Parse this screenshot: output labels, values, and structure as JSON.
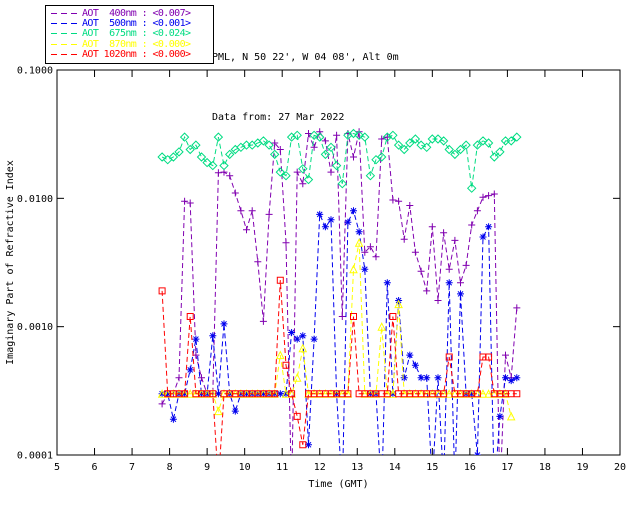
{
  "chart_data": {
    "type": "line",
    "title": "PML, N 50 22', W 04 08', Alt 0m",
    "subtitle": "Data from: 27 Mar 2022",
    "xlabel": "Time (GMT)",
    "ylabel": "Imaginary Part of Refractive Index",
    "xlim": [
      5,
      20
    ],
    "ylim": [
      0.0001,
      0.1
    ],
    "yscale": "log",
    "grid": false,
    "legend_position": "outside-top-left",
    "axis_color": "#000000",
    "xticks": [
      5,
      6,
      7,
      8,
      9,
      10,
      11,
      12,
      13,
      14,
      15,
      16,
      17,
      18,
      19,
      20
    ],
    "yticks": [
      {
        "v": 0.1,
        "label": "0.1000"
      },
      {
        "v": 0.01,
        "label": "0.0100"
      },
      {
        "v": 0.001,
        "label": "0.0010"
      },
      {
        "v": 0.0001,
        "label": "0.0001"
      }
    ],
    "x": [
      7.8,
      7.95,
      8.1,
      8.25,
      8.4,
      8.55,
      8.7,
      8.85,
      9.0,
      9.15,
      9.3,
      9.45,
      9.6,
      9.75,
      9.9,
      10.05,
      10.2,
      10.35,
      10.5,
      10.65,
      10.8,
      10.95,
      11.1,
      11.25,
      11.4,
      11.55,
      11.7,
      11.85,
      12.0,
      12.15,
      12.3,
      12.45,
      12.6,
      12.75,
      12.9,
      13.05,
      13.2,
      13.35,
      13.5,
      13.65,
      13.8,
      13.95,
      14.1,
      14.25,
      14.4,
      14.55,
      14.7,
      14.85,
      15.0,
      15.15,
      15.3,
      15.45,
      15.6,
      15.75,
      15.9,
      16.05,
      16.2,
      16.35,
      16.5,
      16.65,
      16.8,
      16.95,
      17.1,
      17.25
    ],
    "series": [
      {
        "name": "AOT 400nm",
        "wavelength": "400nm",
        "aot": "<0.007>",
        "legend_label": "AOT  400nm : <0.007>",
        "color": "#8000B0",
        "marker": "plus",
        "values": [
          0.00025,
          0.0003,
          0.0003,
          0.0004,
          0.0095,
          0.0092,
          0.0006,
          0.0004,
          0.0003,
          0.0003,
          0.0158,
          0.016,
          0.015,
          0.011,
          0.008,
          0.0057,
          0.008,
          0.0032,
          0.0011,
          0.0075,
          0.027,
          0.024,
          0.0045,
          5e-05,
          0.016,
          0.013,
          0.032,
          0.025,
          0.033,
          0.028,
          0.016,
          0.031,
          0.0012,
          0.032,
          0.021,
          0.033,
          0.0038,
          0.0042,
          0.0035,
          0.029,
          0.03,
          0.0097,
          0.0095,
          0.0048,
          0.0088,
          0.0038,
          0.0027,
          0.0019,
          0.006,
          0.0016,
          0.0054,
          0.0028,
          0.0047,
          0.0022,
          0.003,
          0.0062,
          0.008,
          0.0102,
          0.0105,
          0.0108,
          5e-05,
          0.0006,
          0.0004,
          0.0014
        ]
      },
      {
        "name": "AOT 500nm",
        "wavelength": "500nm",
        "aot": "<0.001>",
        "legend_label": "AOT  500nm : <0.001>",
        "color": "#0000EE",
        "marker": "asterisk",
        "values": [
          0.0003,
          0.0003,
          0.00019,
          0.0003,
          0.0003,
          0.00046,
          0.0008,
          0.0003,
          0.0003,
          0.00085,
          0.0003,
          0.00105,
          0.0003,
          0.00022,
          0.0003,
          0.0003,
          0.0003,
          0.0003,
          0.0003,
          0.0003,
          0.0003,
          0.0003,
          0.0003,
          0.0009,
          0.0008,
          0.00085,
          0.00012,
          0.0008,
          0.0075,
          0.006,
          0.0068,
          0.0003,
          5e-05,
          0.0065,
          0.008,
          0.0055,
          0.0028,
          0.0003,
          0.0003,
          5e-05,
          0.0022,
          0.0003,
          0.0016,
          0.0004,
          0.0006,
          0.0005,
          0.0004,
          0.0004,
          6e-05,
          0.0004,
          6e-05,
          0.0022,
          6e-05,
          0.0018,
          0.0003,
          0.0003,
          0.0001,
          0.005,
          0.006,
          5e-05,
          0.0002,
          0.0004,
          0.00038,
          0.0004
        ]
      },
      {
        "name": "AOT 675nm",
        "wavelength": "675nm",
        "aot": "<0.024>",
        "legend_label": "AOT  675nm : <0.024>",
        "color": "#00DC82",
        "marker": "diamond",
        "values": [
          0.021,
          0.02,
          0.021,
          0.023,
          0.03,
          0.024,
          0.026,
          0.021,
          0.019,
          0.018,
          0.03,
          0.018,
          0.022,
          0.024,
          0.025,
          0.026,
          0.026,
          0.027,
          0.028,
          0.026,
          0.022,
          0.016,
          0.015,
          0.03,
          0.031,
          0.017,
          0.014,
          0.031,
          0.03,
          0.022,
          0.025,
          0.018,
          0.013,
          0.031,
          0.032,
          0.031,
          0.03,
          0.015,
          0.02,
          0.021,
          0.03,
          0.031,
          0.026,
          0.024,
          0.027,
          0.029,
          0.026,
          0.025,
          0.029,
          0.029,
          0.028,
          0.024,
          0.022,
          0.024,
          0.026,
          0.012,
          0.026,
          0.028,
          0.027,
          0.021,
          0.023,
          0.028,
          0.028,
          0.03
        ]
      },
      {
        "name": "AOT 870nm",
        "wavelength": "870nm",
        "aot": "<0.000>",
        "legend_label": "AOT  870nm : <0.000>",
        "color": "#FFFF00",
        "marker": "triangle",
        "values": [
          0.0003,
          0.0003,
          0.0003,
          0.0003,
          0.0003,
          0.0003,
          0.0003,
          0.0003,
          0.0003,
          0.0003,
          0.00022,
          0.0003,
          0.0003,
          0.0003,
          0.0003,
          0.0003,
          0.0003,
          0.0003,
          0.0003,
          0.0003,
          0.0003,
          0.0006,
          0.0003,
          0.0003,
          0.0004,
          0.00068,
          0.0003,
          0.0003,
          0.0003,
          0.0003,
          0.0003,
          0.0003,
          0.0003,
          0.0003,
          0.0028,
          0.0045,
          0.0003,
          0.0003,
          0.0003,
          0.001,
          0.0003,
          0.0003,
          0.0015,
          0.0003,
          0.0003,
          0.0003,
          0.0003,
          0.0003,
          0.0003,
          0.0003,
          0.0003,
          0.0003,
          0.0003,
          0.0003,
          0.0003,
          0.0003,
          0.0003,
          0.0003,
          0.0003,
          0.0003,
          0.0003,
          0.0003,
          0.0002,
          null
        ]
      },
      {
        "name": "AOT 1020nm",
        "wavelength": "1020nm",
        "aot": "<0.000>",
        "legend_label": "AOT 1020nm : <0.000>",
        "color": "#FF0000",
        "marker": "square",
        "values": [
          0.0019,
          0.0003,
          0.0003,
          0.0003,
          0.0003,
          0.0012,
          0.0003,
          0.0003,
          0.0003,
          0.0003,
          6e-05,
          0.0003,
          0.0003,
          0.0003,
          0.0003,
          0.0003,
          0.0003,
          0.0003,
          0.0003,
          0.0003,
          0.0003,
          0.0023,
          0.0005,
          0.0003,
          0.0002,
          0.00012,
          0.0003,
          0.0003,
          0.0003,
          0.0003,
          0.0003,
          0.0003,
          0.0003,
          0.0003,
          0.0012,
          0.0003,
          0.0003,
          0.0003,
          0.0003,
          0.0003,
          0.0003,
          0.0012,
          0.0003,
          0.0003,
          0.0003,
          0.0003,
          0.0003,
          0.0003,
          0.0003,
          0.0003,
          0.0003,
          0.00058,
          0.0003,
          0.0003,
          0.0003,
          0.0003,
          0.0003,
          0.00058,
          0.00058,
          0.0003,
          0.0003,
          0.0003,
          0.0003,
          0.0003
        ]
      }
    ]
  }
}
